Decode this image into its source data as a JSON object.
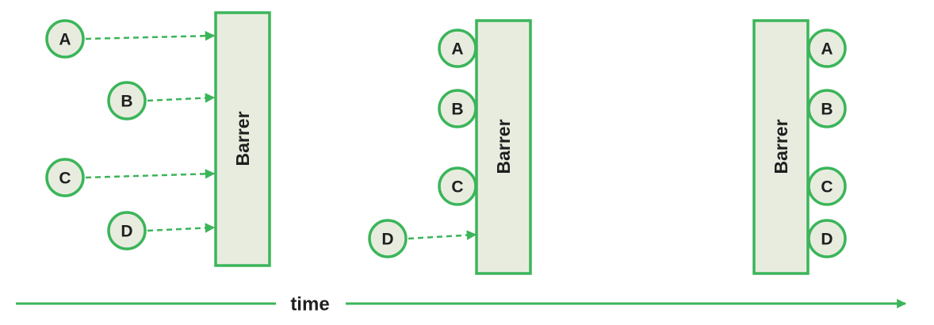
{
  "colors": {
    "accent": "#3bb55a",
    "fill": "#e8ecdf",
    "text": "#1f1f1f",
    "background": "#ffffff"
  },
  "stages": [
    {
      "barrier_label": "Barrer",
      "threads": [
        {
          "label": "A",
          "state": "arriving"
        },
        {
          "label": "B",
          "state": "arriving"
        },
        {
          "label": "C",
          "state": "arriving"
        },
        {
          "label": "D",
          "state": "arriving"
        }
      ]
    },
    {
      "barrier_label": "Barrer",
      "threads": [
        {
          "label": "A",
          "state": "waiting"
        },
        {
          "label": "B",
          "state": "waiting"
        },
        {
          "label": "C",
          "state": "waiting"
        },
        {
          "label": "D",
          "state": "arriving"
        }
      ]
    },
    {
      "barrier_label": "Barrer",
      "threads": [
        {
          "label": "A",
          "state": "passed"
        },
        {
          "label": "B",
          "state": "passed"
        },
        {
          "label": "C",
          "state": "passed"
        },
        {
          "label": "D",
          "state": "passed"
        }
      ]
    }
  ],
  "timeline": {
    "label": "time"
  }
}
